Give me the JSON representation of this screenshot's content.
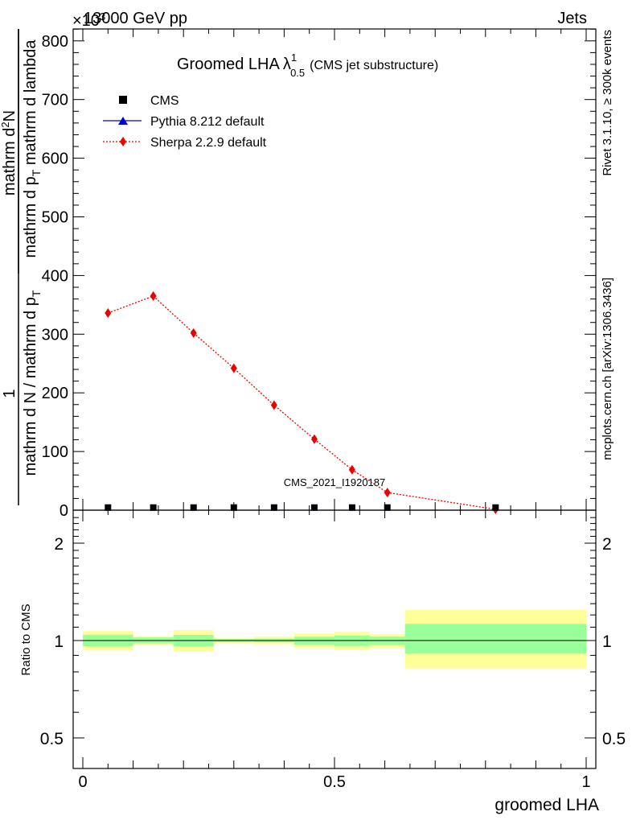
{
  "header": {
    "energy": "13000 GeV pp",
    "process": "Jets",
    "exponent": "×10",
    "exponent_power": "3"
  },
  "plot_title": {
    "main": "Groomed LHA",
    "lambda": "λ",
    "sup": "1",
    "sub": "0.5",
    "suffix": "(CMS jet substructure)"
  },
  "watermark": "CMS_2021_I1920187",
  "side_labels": {
    "rivet": "Rivet 3.1.10, ≥ 300k events",
    "site": "mcplots.cern.ch [arXiv:1306.3436]"
  },
  "ylabel_main": {
    "top": "1",
    "bottom": "mathrm d N / mathrm d p",
    "bottom_sub": "T",
    "right_num": "mathrm d",
    "right_num_sup": "2",
    "right_num_tail": "N",
    "right_den_a": "mathrm d p",
    "right_den_a_sub": "T",
    "right_den_b": " mathrm d lambda"
  },
  "legend": [
    {
      "label": "CMS",
      "color": "#000000",
      "marker": "square-marker"
    },
    {
      "label": "Pythia 8.212 default",
      "color": "#0000cc",
      "marker": "triangle-marker"
    },
    {
      "label": "Sherpa 2.2.9 default",
      "color": "#ee0000",
      "marker": "diamond-marker"
    }
  ],
  "chart_data": [
    {
      "type": "line",
      "xlabel": "groomed LHA",
      "xlim": [
        0,
        1
      ],
      "ylim": [
        0,
        820
      ],
      "yticks": [
        0,
        100,
        200,
        300,
        400,
        500,
        600,
        700,
        800
      ],
      "ytick_labels": [
        "0",
        "100",
        "200",
        "300",
        "400",
        "500",
        "600",
        "700",
        "800"
      ],
      "series": [
        {
          "name": "CMS",
          "x": [
            0.05,
            0.14,
            0.22,
            0.3,
            0.38,
            0.46,
            0.535,
            0.605,
            0.82
          ],
          "y": [
            0.4,
            0.4,
            0.4,
            0.4,
            0.4,
            0.4,
            0.4,
            0.4,
            0.4
          ]
        },
        {
          "name": "Pythia 8.212 default",
          "x": [
            0.05,
            0.14,
            0.22,
            0.3,
            0.38,
            0.46,
            0.535,
            0.605,
            0.82
          ],
          "y": [
            0.3,
            0.3,
            0.3,
            0.3,
            0.3,
            0.3,
            0.3,
            0.3,
            0.3
          ]
        },
        {
          "name": "Sherpa 2.2.9 default",
          "x": [
            0.05,
            0.14,
            0.22,
            0.3,
            0.38,
            0.46,
            0.535,
            0.605,
            0.82
          ],
          "y": [
            336,
            365,
            302,
            242,
            179,
            121,
            69,
            30,
            1.5
          ]
        }
      ]
    },
    {
      "type": "area",
      "ylabel": "Ratio to CMS",
      "ylog": true,
      "ylim": [
        0.4,
        2.5
      ],
      "yticks": [
        0.5,
        1,
        2
      ],
      "ytick_labels": [
        "0.5",
        "1",
        "2"
      ],
      "xticks": [
        0,
        0.5,
        1
      ],
      "xtick_labels": [
        "0",
        "0.5",
        "1"
      ],
      "bands": [
        {
          "x0": 0.0,
          "x1": 0.1,
          "inner": [
            0.961,
            1.042
          ],
          "outer": [
            0.932,
            1.07
          ]
        },
        {
          "x0": 0.1,
          "x1": 0.18,
          "inner": [
            0.983,
            1.022
          ],
          "outer": [
            0.97,
            1.032
          ]
        },
        {
          "x0": 0.18,
          "x1": 0.26,
          "inner": [
            0.958,
            1.041
          ],
          "outer": [
            0.925,
            1.077
          ]
        },
        {
          "x0": 0.26,
          "x1": 0.34,
          "inner": [
            0.991,
            1.011
          ],
          "outer": [
            0.983,
            1.02
          ]
        },
        {
          "x0": 0.34,
          "x1": 0.42,
          "inner": [
            0.988,
            1.014
          ],
          "outer": [
            0.974,
            1.03
          ]
        },
        {
          "x0": 0.42,
          "x1": 0.5,
          "inner": [
            0.972,
            1.027
          ],
          "outer": [
            0.95,
            1.049
          ]
        },
        {
          "x0": 0.5,
          "x1": 0.57,
          "inner": [
            0.962,
            1.037
          ],
          "outer": [
            0.934,
            1.066
          ]
        },
        {
          "x0": 0.57,
          "x1": 0.64,
          "inner": [
            0.97,
            1.028
          ],
          "outer": [
            0.95,
            1.045
          ]
        },
        {
          "x0": 0.64,
          "x1": 1.0,
          "inner": [
            0.911,
            1.126
          ],
          "outer": [
            0.82,
            1.245
          ]
        }
      ],
      "inner_color": "#99ff99",
      "outer_color": "#ffff99"
    }
  ]
}
